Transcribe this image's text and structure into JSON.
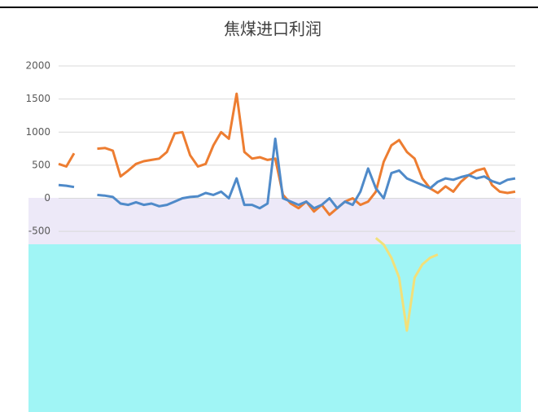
{
  "chart_data": {
    "type": "line",
    "title": "焦煤进口利润",
    "categories": [
      null,
      null,
      null,
      null,
      null,
      null,
      null,
      null,
      null,
      null,
      null,
      null,
      null,
      null,
      null,
      null,
      null,
      null,
      null,
      null,
      null,
      null,
      null,
      null,
      null,
      null,
      null,
      null,
      null,
      null,
      null,
      null,
      null,
      null,
      null,
      null,
      null,
      null,
      null,
      null,
      null,
      null,
      null,
      null,
      null,
      null,
      null,
      null,
      null,
      null,
      null,
      null,
      null,
      null,
      null,
      null,
      null,
      null,
      null,
      null
    ],
    "series": [
      {
        "color": "#ed7d31",
        "values": [
          520,
          480,
          680,
          null,
          null,
          750,
          760,
          720,
          330,
          420,
          520,
          560,
          580,
          600,
          700,
          980,
          1000,
          650,
          480,
          520,
          800,
          1000,
          900,
          1580,
          700,
          600,
          620,
          580,
          600,
          50,
          -80,
          -150,
          -50,
          -200,
          -100,
          -250,
          -150,
          -50,
          0,
          -100,
          -50,
          100,
          550,
          800,
          880,
          700,
          600,
          300,
          150,
          80,
          180,
          100,
          250,
          350,
          420,
          450,
          200,
          100,
          80,
          100
        ]
      },
      {
        "color": "#4f8ac9",
        "values": [
          200,
          190,
          170,
          null,
          null,
          50,
          40,
          20,
          -80,
          -100,
          -60,
          -100,
          -80,
          -120,
          -100,
          -50,
          0,
          20,
          30,
          80,
          50,
          100,
          0,
          300,
          -100,
          -100,
          -150,
          -80,
          900,
          0,
          -50,
          -100,
          -50,
          -150,
          -100,
          0,
          -150,
          -50,
          -100,
          100,
          450,
          150,
          0,
          380,
          420,
          300,
          250,
          200,
          150,
          250,
          300,
          280,
          320,
          350,
          300,
          330,
          260,
          220,
          280,
          300
        ]
      },
      {
        "color": "#f2e07a",
        "values": [
          null,
          null,
          null,
          null,
          null,
          null,
          null,
          null,
          null,
          null,
          null,
          null,
          null,
          null,
          null,
          null,
          null,
          null,
          null,
          null,
          null,
          null,
          null,
          null,
          null,
          null,
          null,
          null,
          null,
          null,
          null,
          null,
          null,
          null,
          null,
          null,
          null,
          null,
          null,
          null,
          null,
          -600,
          -700,
          -900,
          -1200,
          -2000,
          -1200,
          -1000,
          -900,
          -850,
          null,
          null,
          null,
          null,
          null,
          null,
          null,
          null,
          null,
          null
        ]
      }
    ],
    "ylim": [
      -2000,
      2000
    ],
    "yticks": [
      -500,
      0,
      500,
      1000,
      1500,
      2000
    ],
    "grid": true
  }
}
